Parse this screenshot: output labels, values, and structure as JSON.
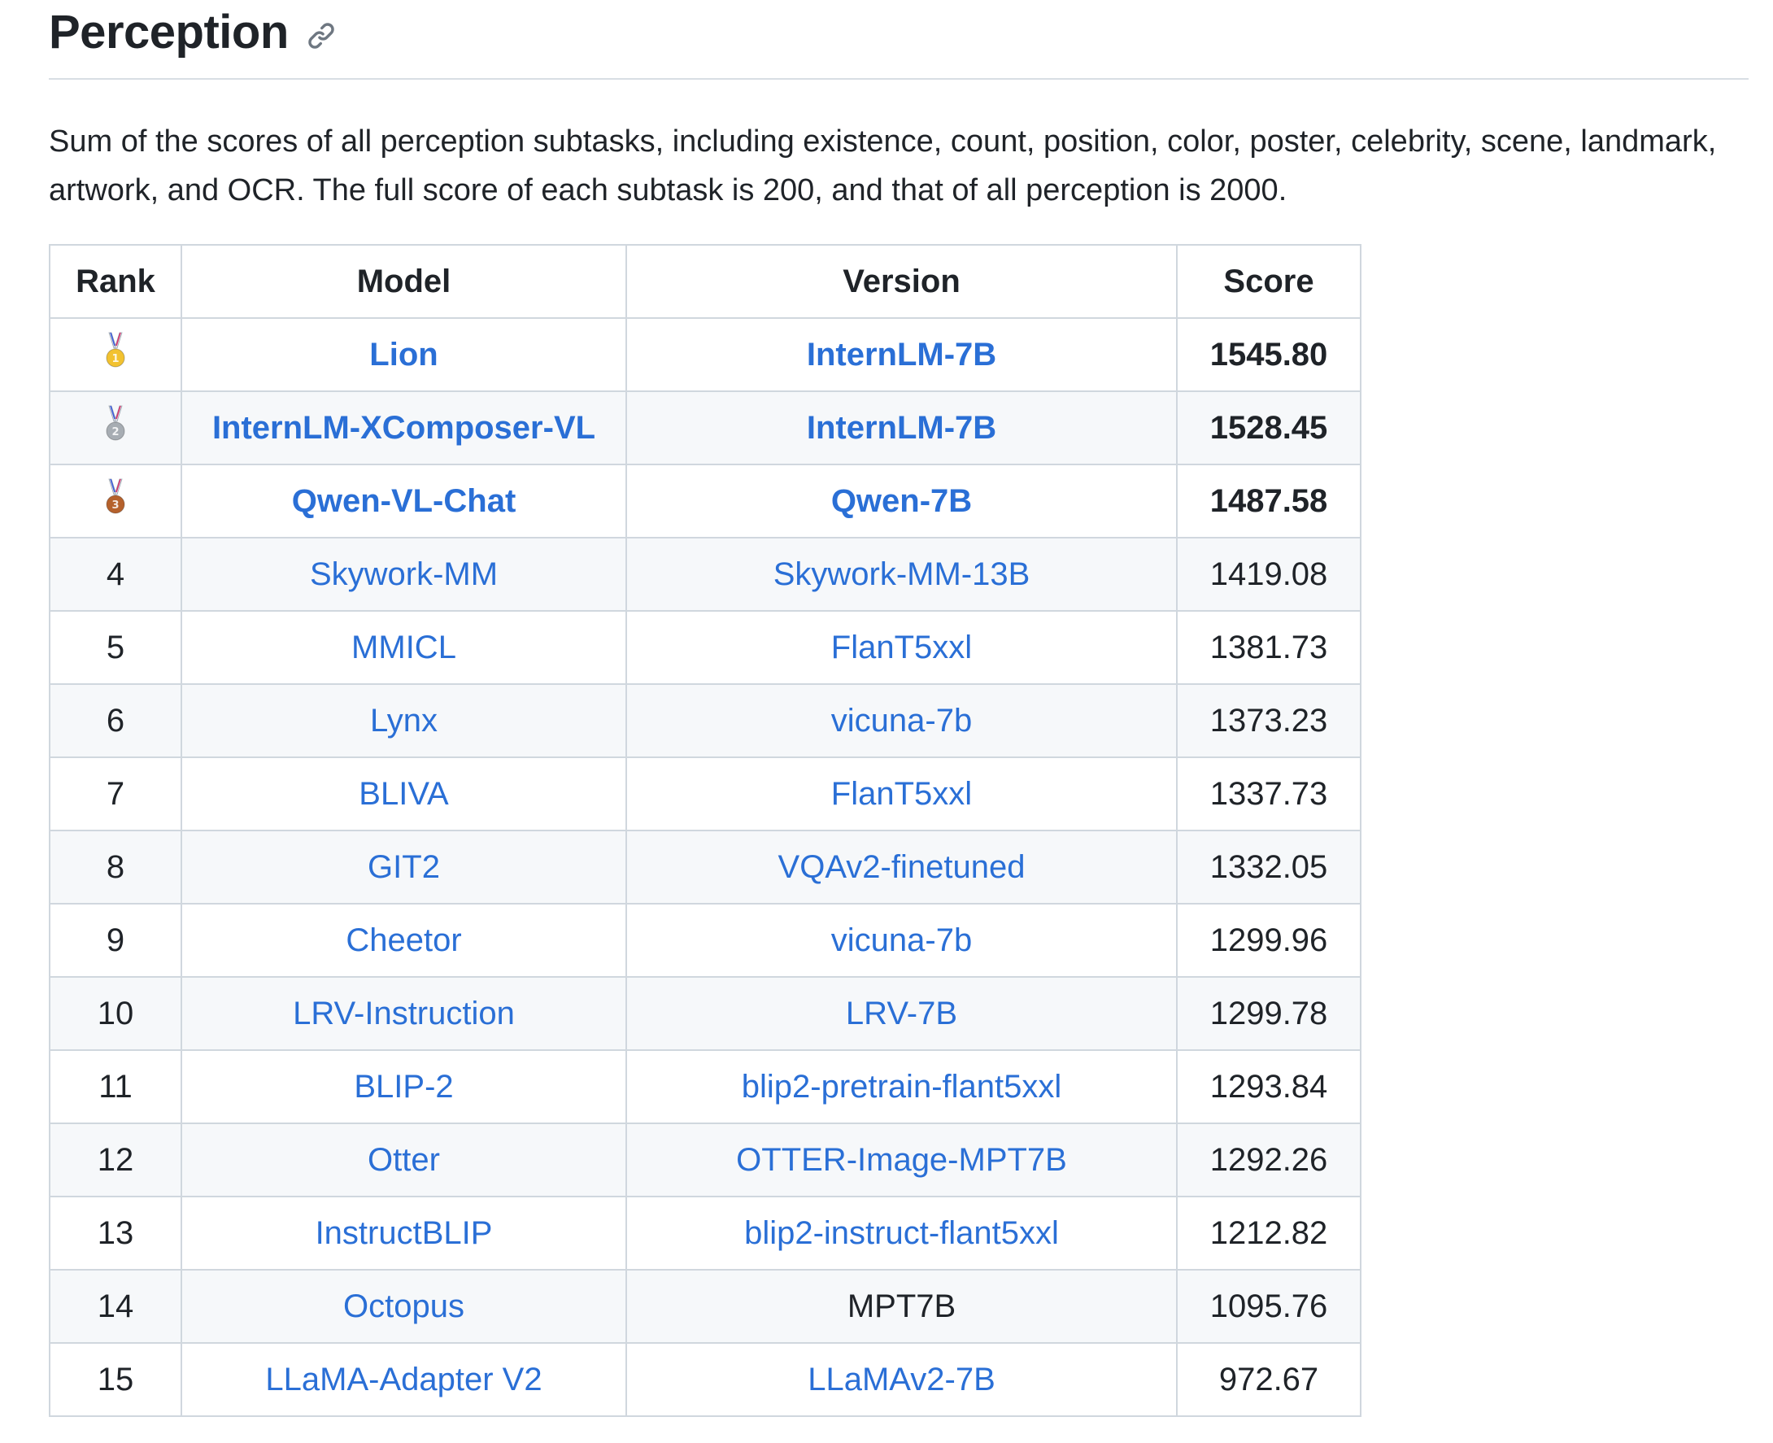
{
  "section": {
    "title": "Perception",
    "anchor_icon": "link-icon",
    "description": "Sum of the scores of all perception subtasks, including existence, count, position, color, poster, celebrity, scene, landmark, artwork, and OCR. The full score of each subtask is 200, and that of all perception is 2000."
  },
  "table": {
    "headers": [
      "Rank",
      "Model",
      "Version",
      "Score"
    ],
    "rows": [
      {
        "rank": "",
        "medal": "gold-medal-icon",
        "model": "Lion",
        "model_link": true,
        "version": "InternLM-7B",
        "version_link": true,
        "score": "1545.80",
        "bold": true
      },
      {
        "rank": "",
        "medal": "silver-medal-icon",
        "model": "InternLM-XComposer-VL",
        "model_link": true,
        "version": "InternLM-7B",
        "version_link": true,
        "score": "1528.45",
        "bold": true
      },
      {
        "rank": "",
        "medal": "bronze-medal-icon",
        "model": "Qwen-VL-Chat",
        "model_link": true,
        "version": "Qwen-7B",
        "version_link": true,
        "score": "1487.58",
        "bold": true
      },
      {
        "rank": "4",
        "model": "Skywork-MM",
        "model_link": true,
        "version": "Skywork-MM-13B",
        "version_link": true,
        "score": "1419.08",
        "bold": false
      },
      {
        "rank": "5",
        "model": "MMICL",
        "model_link": true,
        "version": "FlanT5xxl",
        "version_link": true,
        "score": "1381.73",
        "bold": false
      },
      {
        "rank": "6",
        "model": "Lynx",
        "model_link": true,
        "version": "vicuna-7b",
        "version_link": true,
        "score": "1373.23",
        "bold": false
      },
      {
        "rank": "7",
        "model": "BLIVA",
        "model_link": true,
        "version": "FlanT5xxl",
        "version_link": true,
        "score": "1337.73",
        "bold": false
      },
      {
        "rank": "8",
        "model": "GIT2",
        "model_link": true,
        "version": "VQAv2-finetuned",
        "version_link": true,
        "score": "1332.05",
        "bold": false
      },
      {
        "rank": "9",
        "model": "Cheetor",
        "model_link": true,
        "version": "vicuna-7b",
        "version_link": true,
        "score": "1299.96",
        "bold": false
      },
      {
        "rank": "10",
        "model": "LRV-Instruction",
        "model_link": true,
        "version": "LRV-7B",
        "version_link": true,
        "score": "1299.78",
        "bold": false
      },
      {
        "rank": "11",
        "model": "BLIP-2",
        "model_link": true,
        "version": "blip2-pretrain-flant5xxl",
        "version_link": true,
        "score": "1293.84",
        "bold": false
      },
      {
        "rank": "12",
        "model": "Otter",
        "model_link": true,
        "version": "OTTER-Image-MPT7B",
        "version_link": true,
        "score": "1292.26",
        "bold": false
      },
      {
        "rank": "13",
        "model": "InstructBLIP",
        "model_link": true,
        "version": "blip2-instruct-flant5xxl",
        "version_link": true,
        "score": "1212.82",
        "bold": false
      },
      {
        "rank": "14",
        "model": "Octopus",
        "model_link": true,
        "version": "MPT7B",
        "version_link": false,
        "score": "1095.76",
        "bold": false
      },
      {
        "rank": "15",
        "model": "LLaMA-Adapter V2",
        "model_link": true,
        "version": "LLaMAv2-7B",
        "version_link": true,
        "score": "972.67",
        "bold": false
      }
    ]
  },
  "colors": {
    "link": "#2a6fd6",
    "text": "#1f2328",
    "border": "#d0d7de",
    "stripe": "#f6f8fa",
    "gold": "#f2c230",
    "silver": "#a7adb3",
    "bronze": "#b5612c"
  }
}
